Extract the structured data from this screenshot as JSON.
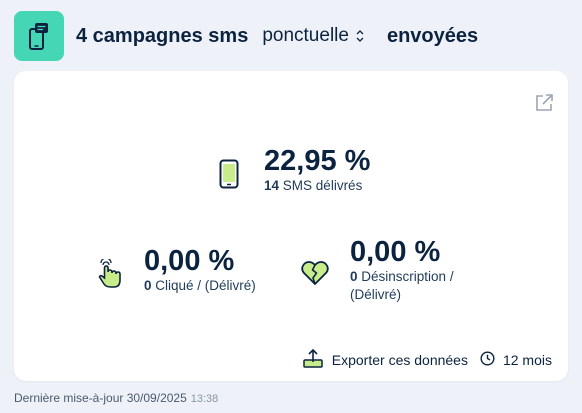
{
  "header": {
    "icon": "sms-campaign-icon",
    "count_label": "4 campagnes sms",
    "type_select": "ponctuelle",
    "status_label": "envoyées"
  },
  "colors": {
    "accent": "#44d6b5",
    "icon_fill": "#c8ec8a",
    "navy": "#0c2340",
    "page_bg": "#eef2f8"
  },
  "metrics": {
    "delivered": {
      "icon": "phone-icon",
      "value": "22,95 %",
      "count": "14",
      "label": "SMS délivrés"
    },
    "clicked": {
      "icon": "tap-hand-icon",
      "value": "0,00 %",
      "count": "0",
      "label": "Cliqué / (Délivré)"
    },
    "unsubscribed": {
      "icon": "broken-heart-icon",
      "value": "0,00 %",
      "count": "0",
      "label": "Désinscription / (Délivré)"
    }
  },
  "actions": {
    "export_label": "Exporter ces données",
    "period_label": "12 mois"
  },
  "footer": {
    "updated_label": "Dernière mise-à-jour 30/09/2025",
    "updated_time": "13:38"
  }
}
